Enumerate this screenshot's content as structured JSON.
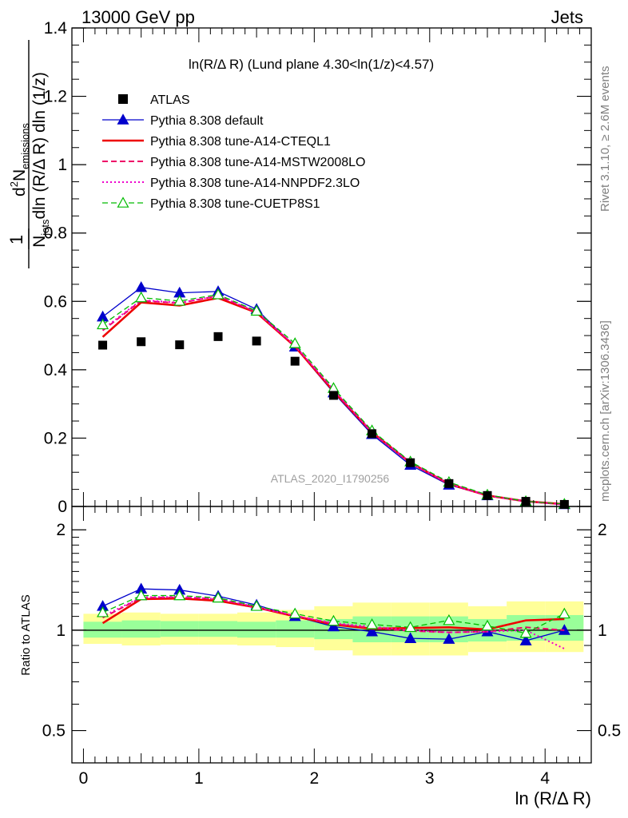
{
  "header": {
    "left": "13000 GeV pp",
    "right": "Jets"
  },
  "side_labels": {
    "rivet": "Rivet 3.1.10, ≥ 2.6M events",
    "mcplots": "mcplots.cern.ch [arXiv:1306.3436]"
  },
  "watermark": "ATLAS_2020_I1790256",
  "colors": {
    "atlas": "#000000",
    "default": "#0000cc",
    "cteql1": "#ee0000",
    "mstw": "#ee0066",
    "nnpdf": "#ee00cc",
    "cuetp": "#00bb00",
    "band_inner": "#99ff99",
    "band_outer": "#ffff99"
  },
  "chart_data": [
    {
      "type": "line",
      "title": "ln(R/Δ R) (Lund plane 4.30<ln(1/z)<4.57)",
      "ylabel": {
        "numerator_main": "d",
        "numerator_sup": "2",
        "numerator_rest": "N",
        "numerator_sub": "emissions",
        "denominator_pre": "N",
        "denominator_sub": "jets",
        "denominator_rest": "dln (R/Δ R) dln (1/z)",
        "prefix": "1"
      },
      "xlim": [
        -0.1,
        4.4
      ],
      "ylim": [
        0,
        1.4
      ],
      "yticks": [
        "0",
        "0.2",
        "0.4",
        "0.6",
        "0.8",
        "1",
        "1.2",
        "1.4"
      ],
      "grid": false,
      "legend_position": "top-left",
      "x": [
        0.167,
        0.5,
        0.833,
        1.167,
        1.5,
        1.833,
        2.167,
        2.5,
        2.833,
        3.167,
        3.5,
        3.833,
        4.167
      ],
      "series": [
        {
          "name": "ATLAS",
          "key": "atlas",
          "style": "square",
          "values": [
            0.472,
            0.482,
            0.473,
            0.497,
            0.484,
            0.425,
            0.325,
            0.213,
            0.128,
            0.067,
            0.032,
            0.015,
            0.006
          ]
        },
        {
          "name": "Pythia 8.308 default",
          "key": "default",
          "style": "solid-triangle",
          "values": [
            0.555,
            0.641,
            0.625,
            0.629,
            0.577,
            0.467,
            0.333,
            0.211,
            0.121,
            0.063,
            0.032,
            0.014,
            0.006
          ]
        },
        {
          "name": "Pythia 8.308 tune-A14-CTEQL1",
          "key": "cteql1",
          "style": "solid",
          "values": [
            0.496,
            0.597,
            0.588,
            0.61,
            0.567,
            0.468,
            0.337,
            0.217,
            0.128,
            0.066,
            0.032,
            0.015,
            0.0065
          ]
        },
        {
          "name": "Pythia 8.308 tune-A14-MSTW2008LO",
          "key": "mstw",
          "style": "dashed",
          "values": [
            0.515,
            0.602,
            0.595,
            0.616,
            0.568,
            0.47,
            0.34,
            0.216,
            0.127,
            0.066,
            0.032,
            0.015,
            0.006
          ]
        },
        {
          "name": "Pythia 8.308 tune-A14-NNPDF2.3LO",
          "key": "nnpdf",
          "style": "dotted",
          "values": [
            0.518,
            0.604,
            0.596,
            0.616,
            0.57,
            0.47,
            0.341,
            0.218,
            0.128,
            0.066,
            0.032,
            0.015,
            0.0053
          ]
        },
        {
          "name": "Pythia 8.308 tune-CUETP8S1",
          "key": "cuetp",
          "style": "dashed-open-triangle",
          "values": [
            0.532,
            0.611,
            0.601,
            0.62,
            0.572,
            0.477,
            0.346,
            0.222,
            0.131,
            0.071,
            0.034,
            0.015,
            0.007
          ]
        }
      ]
    },
    {
      "type": "line",
      "title": "",
      "xlabel": "ln (R/Δ R)",
      "ylabel": "Ratio to ATLAS",
      "xlim": [
        -0.1,
        4.4
      ],
      "ylim": [
        0.4,
        2.35
      ],
      "yscale": "log",
      "xticks": [
        "0",
        "1",
        "2",
        "3",
        "4"
      ],
      "yticks": [
        "0.5",
        "1",
        "2"
      ],
      "reference_line": 1,
      "x": [
        0.167,
        0.5,
        0.833,
        1.167,
        1.5,
        1.833,
        2.167,
        2.5,
        2.833,
        3.167,
        3.5,
        3.833,
        4.167
      ],
      "band_edges": [
        0.0,
        0.333,
        0.667,
        1.0,
        1.333,
        1.667,
        2.0,
        2.333,
        2.667,
        3.0,
        3.333,
        3.667,
        4.0,
        4.333
      ],
      "band_inner": [
        [
          0.95,
          1.06
        ],
        [
          0.95,
          1.07
        ],
        [
          0.955,
          1.065
        ],
        [
          0.955,
          1.065
        ],
        [
          0.95,
          1.06
        ],
        [
          0.95,
          1.07
        ],
        [
          0.94,
          1.08
        ],
        [
          0.92,
          1.1
        ],
        [
          0.92,
          1.1
        ],
        [
          0.92,
          1.1
        ],
        [
          0.925,
          1.08
        ],
        [
          0.93,
          1.11
        ],
        [
          0.93,
          1.11
        ]
      ],
      "band_outer": [
        [
          0.91,
          1.12
        ],
        [
          0.9,
          1.13
        ],
        [
          0.905,
          1.12
        ],
        [
          0.905,
          1.12
        ],
        [
          0.9,
          1.13
        ],
        [
          0.89,
          1.15
        ],
        [
          0.87,
          1.18
        ],
        [
          0.84,
          1.21
        ],
        [
          0.84,
          1.21
        ],
        [
          0.84,
          1.21
        ],
        [
          0.86,
          1.18
        ],
        [
          0.86,
          1.22
        ],
        [
          0.86,
          1.22
        ]
      ],
      "series": [
        {
          "name": "Pythia 8.308 default",
          "key": "default",
          "style": "solid-triangle",
          "values": [
            1.18,
            1.33,
            1.32,
            1.265,
            1.19,
            1.1,
            1.025,
            0.99,
            0.945,
            0.94,
            0.99,
            0.93,
            1.0
          ]
        },
        {
          "name": "Pythia 8.308 tune-A14-CTEQL1",
          "key": "cteql1",
          "style": "solid",
          "values": [
            1.05,
            1.24,
            1.245,
            1.225,
            1.17,
            1.1,
            1.04,
            1.01,
            1.015,
            1.02,
            1.005,
            1.07,
            1.08
          ]
        },
        {
          "name": "Pythia 8.308 tune-A14-MSTW2008LO",
          "key": "mstw",
          "style": "dashed",
          "values": [
            1.09,
            1.25,
            1.255,
            1.24,
            1.17,
            1.105,
            1.045,
            1.015,
            0.995,
            0.985,
            0.99,
            1.02,
            1.0
          ]
        },
        {
          "name": "Pythia 8.308 tune-A14-NNPDF2.3LO",
          "key": "nnpdf",
          "style": "dotted",
          "values": [
            1.1,
            1.255,
            1.26,
            1.24,
            1.175,
            1.105,
            1.05,
            1.025,
            1.0,
            0.985,
            0.99,
            1.0,
            0.88
          ]
        },
        {
          "name": "Pythia 8.308 tune-CUETP8S1",
          "key": "cuetp",
          "style": "dashed-open-triangle",
          "values": [
            1.13,
            1.27,
            1.27,
            1.25,
            1.18,
            1.12,
            1.065,
            1.04,
            1.02,
            1.07,
            1.03,
            0.98,
            1.12
          ]
        }
      ]
    }
  ]
}
